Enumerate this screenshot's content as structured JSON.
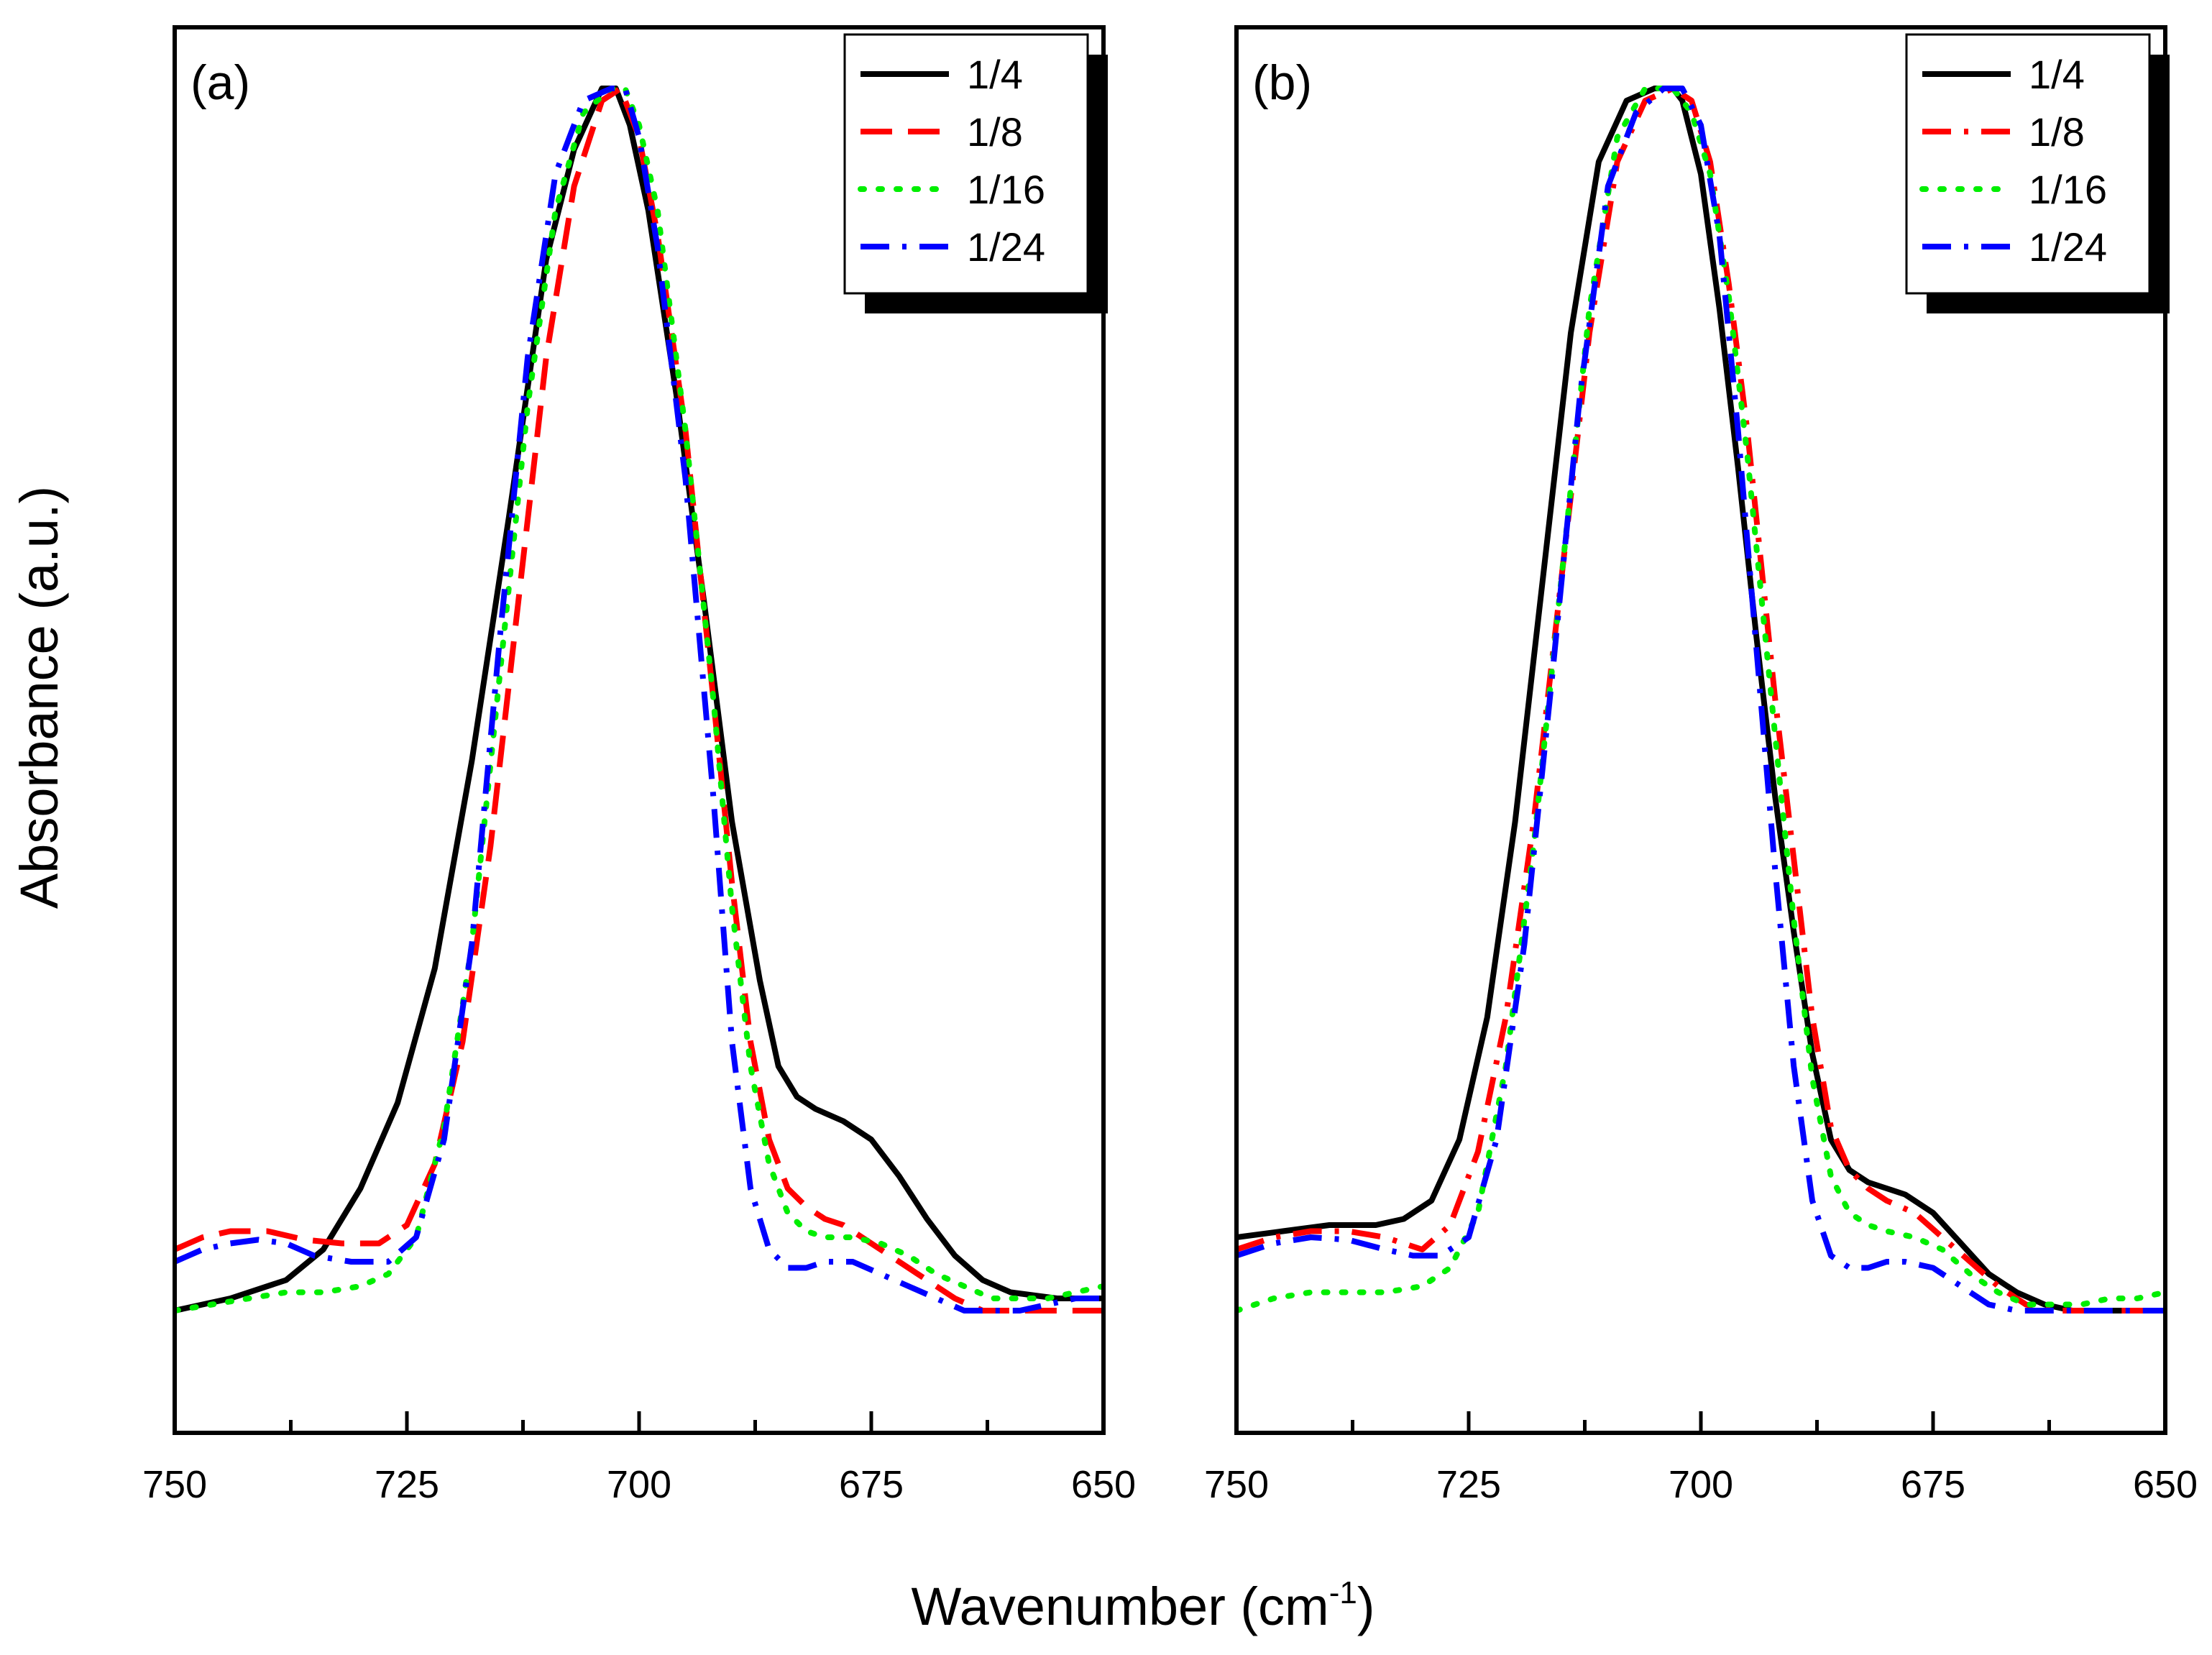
{
  "figure": {
    "xlabel_main": "Wavenumber (cm",
    "xlabel_sup": "-1",
    "xlabel_close": ")",
    "ylabel": "Absorbance (a.u.)"
  },
  "chart_data": [
    {
      "type": "line",
      "panel_label": "(a)",
      "xlabel": "Wavenumber (cm-1)",
      "ylabel": "Absorbance (a.u.)",
      "xlim": [
        750,
        650
      ],
      "ylim": [
        -0.1,
        1.05
      ],
      "x_reversed": true,
      "xticks": [
        "750",
        "725",
        "700",
        "675",
        "650"
      ],
      "xtick_values": [
        750,
        725,
        700,
        675,
        650
      ],
      "yticks_visible": false,
      "legend_position": "top-right",
      "series": [
        {
          "name": "1/4",
          "color": "#000000",
          "style": "solid",
          "x": [
            750,
            744,
            738,
            734,
            730,
            726,
            722,
            718,
            714,
            710,
            707,
            704,
            702.5,
            701,
            699,
            696,
            693,
            690,
            687,
            685,
            683,
            681,
            678,
            675,
            672,
            669,
            666,
            663,
            660,
            655,
            650
          ],
          "y": [
            0.0,
            0.01,
            0.025,
            0.05,
            0.1,
            0.17,
            0.28,
            0.45,
            0.65,
            0.86,
            0.95,
            1.0,
            1.0,
            0.97,
            0.9,
            0.75,
            0.58,
            0.4,
            0.27,
            0.2,
            0.175,
            0.165,
            0.155,
            0.14,
            0.11,
            0.075,
            0.045,
            0.025,
            0.015,
            0.01,
            0.01
          ]
        },
        {
          "name": "1/8",
          "color": "#ff0000",
          "style": "dashed",
          "x": [
            750,
            747,
            744,
            740,
            736,
            732,
            728,
            725,
            722,
            719,
            716,
            713,
            710,
            707,
            704,
            702,
            700,
            698,
            695,
            692,
            690,
            688,
            686,
            684,
            682,
            680,
            678,
            675,
            672,
            669,
            666,
            663,
            660,
            655,
            650
          ],
          "y": [
            0.05,
            0.06,
            0.065,
            0.065,
            0.058,
            0.055,
            0.055,
            0.07,
            0.12,
            0.22,
            0.38,
            0.58,
            0.78,
            0.92,
            0.99,
            1.0,
            0.96,
            0.88,
            0.72,
            0.5,
            0.35,
            0.22,
            0.14,
            0.1,
            0.085,
            0.075,
            0.07,
            0.055,
            0.04,
            0.025,
            0.01,
            0.0,
            0.0,
            0.0,
            0.0
          ]
        },
        {
          "name": "1/16",
          "color": "#00ee00",
          "style": "dotted",
          "x": [
            750,
            746,
            742,
            738,
            734,
            730,
            727,
            724,
            721,
            718,
            715,
            712,
            709,
            706,
            703,
            701.5,
            700,
            698,
            695,
            692,
            690,
            688,
            686,
            684,
            682,
            680,
            677,
            674,
            671,
            668,
            665,
            662,
            659,
            656,
            653,
            650
          ],
          "y": [
            0.0,
            0.005,
            0.01,
            0.015,
            0.015,
            0.02,
            0.03,
            0.06,
            0.15,
            0.3,
            0.52,
            0.74,
            0.9,
            0.98,
            1.0,
            1.0,
            0.97,
            0.9,
            0.72,
            0.5,
            0.33,
            0.2,
            0.12,
            0.08,
            0.065,
            0.06,
            0.06,
            0.055,
            0.045,
            0.03,
            0.02,
            0.01,
            0.01,
            0.01,
            0.015,
            0.02
          ]
        },
        {
          "name": "1/24",
          "color": "#0000ff",
          "style": "dashdot",
          "x": [
            750,
            747,
            744,
            741,
            738,
            735,
            731,
            727,
            724,
            721,
            718,
            715,
            712,
            709,
            706,
            703,
            701.5,
            700,
            698,
            695,
            692,
            690,
            688,
            686,
            684,
            682,
            680,
            677,
            674,
            671,
            668,
            665,
            662,
            659,
            656,
            653,
            650
          ],
          "y": [
            0.04,
            0.05,
            0.055,
            0.058,
            0.055,
            0.045,
            0.04,
            0.04,
            0.06,
            0.14,
            0.3,
            0.55,
            0.78,
            0.93,
            0.99,
            1.0,
            1.0,
            0.96,
            0.87,
            0.68,
            0.42,
            0.22,
            0.1,
            0.05,
            0.035,
            0.035,
            0.04,
            0.04,
            0.03,
            0.02,
            0.01,
            0.0,
            0.0,
            0.0,
            0.005,
            0.01,
            0.01
          ]
        }
      ]
    },
    {
      "type": "line",
      "panel_label": "(b)",
      "xlabel": "Wavenumber (cm-1)",
      "ylabel": "Absorbance (a.u.)",
      "xlim": [
        750,
        650
      ],
      "ylim": [
        -0.1,
        1.05
      ],
      "x_reversed": true,
      "xticks": [
        "750",
        "725",
        "700",
        "675",
        "650"
      ],
      "xtick_values": [
        750,
        725,
        700,
        675,
        650
      ],
      "yticks_visible": false,
      "legend_position": "top-right",
      "series": [
        {
          "name": "1/4",
          "color": "#000000",
          "style": "solid",
          "x": [
            750,
            745,
            740,
            735,
            732,
            729,
            726,
            723,
            720,
            717,
            714,
            711,
            708,
            705,
            703,
            702,
            700,
            698,
            696,
            694,
            692,
            690,
            688,
            686,
            684,
            682,
            680,
            678,
            675,
            672,
            669,
            666,
            663,
            660,
            655,
            650
          ],
          "y": [
            0.06,
            0.065,
            0.07,
            0.07,
            0.075,
            0.09,
            0.14,
            0.24,
            0.4,
            0.6,
            0.8,
            0.94,
            0.99,
            1.0,
            1.0,
            0.99,
            0.93,
            0.82,
            0.69,
            0.55,
            0.42,
            0.31,
            0.21,
            0.14,
            0.115,
            0.105,
            0.1,
            0.095,
            0.08,
            0.055,
            0.03,
            0.015,
            0.005,
            0.0,
            0.0,
            0.0
          ]
        },
        {
          "name": "1/8",
          "color": "#ff0000",
          "style": "dashdot",
          "x": [
            750,
            746,
            742,
            738,
            734,
            730,
            727,
            724,
            721,
            718,
            715,
            712,
            709,
            706,
            703,
            701,
            699,
            697,
            695,
            692,
            690,
            688,
            686,
            684,
            682,
            680,
            677,
            674,
            671,
            668,
            665,
            662,
            659,
            656,
            653,
            650
          ],
          "y": [
            0.05,
            0.06,
            0.065,
            0.065,
            0.06,
            0.05,
            0.07,
            0.13,
            0.24,
            0.4,
            0.6,
            0.8,
            0.94,
            0.99,
            1.0,
            0.99,
            0.94,
            0.84,
            0.72,
            0.5,
            0.37,
            0.24,
            0.15,
            0.115,
            0.1,
            0.09,
            0.08,
            0.06,
            0.04,
            0.02,
            0.005,
            0.0,
            0.0,
            0.0,
            0.0,
            0.0
          ]
        },
        {
          "name": "1/16",
          "color": "#00ee00",
          "style": "dotted",
          "x": [
            750,
            746,
            742,
            738,
            734,
            730,
            727,
            724,
            721,
            718,
            715,
            712,
            709,
            706,
            703,
            701,
            699,
            697,
            695,
            692,
            690,
            688,
            686,
            684,
            682,
            680,
            677,
            674,
            671,
            668,
            665,
            662,
            659,
            656,
            653,
            650
          ],
          "y": [
            0.0,
            0.01,
            0.015,
            0.015,
            0.015,
            0.02,
            0.035,
            0.08,
            0.2,
            0.38,
            0.6,
            0.82,
            0.96,
            1.0,
            1.0,
            0.98,
            0.93,
            0.83,
            0.7,
            0.47,
            0.32,
            0.19,
            0.11,
            0.08,
            0.07,
            0.065,
            0.06,
            0.05,
            0.03,
            0.015,
            0.005,
            0.005,
            0.005,
            0.01,
            0.01,
            0.015
          ]
        },
        {
          "name": "1/24",
          "color": "#0000ff",
          "style": "dashdot",
          "x": [
            750,
            746,
            742,
            738,
            734,
            731,
            728,
            725,
            722,
            719,
            716,
            713,
            710,
            707,
            704,
            702,
            700,
            698,
            696,
            694,
            692,
            690,
            688,
            686,
            684,
            682,
            680,
            678,
            675,
            672,
            669,
            666,
            663,
            660,
            655,
            650
          ],
          "y": [
            0.045,
            0.055,
            0.06,
            0.058,
            0.05,
            0.045,
            0.045,
            0.06,
            0.14,
            0.3,
            0.52,
            0.75,
            0.92,
            0.98,
            1.0,
            1.0,
            0.97,
            0.88,
            0.72,
            0.54,
            0.36,
            0.2,
            0.09,
            0.045,
            0.035,
            0.035,
            0.04,
            0.04,
            0.035,
            0.02,
            0.005,
            0.0,
            0.0,
            0.0,
            0.0,
            0.0
          ]
        }
      ]
    }
  ]
}
